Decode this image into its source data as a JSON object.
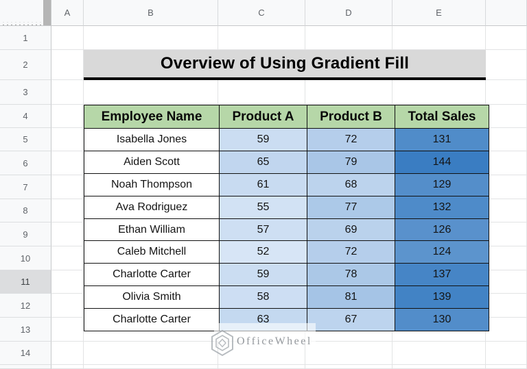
{
  "sheet": {
    "column_letters": [
      "A",
      "B",
      "C",
      "D",
      "E"
    ],
    "row_numbers": [
      "1",
      "2",
      "3",
      "4",
      "5",
      "6",
      "7",
      "8",
      "9",
      "10",
      "11",
      "12",
      "13",
      "14"
    ],
    "highlighted_row": "11"
  },
  "title": {
    "text": "Overview of Using Gradient Fill",
    "bg": "#d9d9d9"
  },
  "table": {
    "header_bg": "#b6d7a8",
    "headers": [
      "Employee Name",
      "Product A",
      "Product B",
      "Total Sales"
    ],
    "rows": [
      {
        "name": "Isabella Jones",
        "product_a": "59",
        "product_b": "72",
        "total": "131",
        "colors": [
          "#cbddf2",
          "#b5ceeb",
          "#508cc9"
        ]
      },
      {
        "name": "Aiden Scott",
        "product_a": "65",
        "product_b": "79",
        "total": "144",
        "colors": [
          "#c1d6ef",
          "#a9c6e7",
          "#3a7dc2"
        ]
      },
      {
        "name": "Noah Thompson",
        "product_a": "61",
        "product_b": "68",
        "total": "129",
        "colors": [
          "#c8dbf1",
          "#bcd3ed",
          "#548eca"
        ]
      },
      {
        "name": "Ava Rodriguez",
        "product_a": "55",
        "product_b": "77",
        "total": "132",
        "colors": [
          "#d2e2f4",
          "#acc9e8",
          "#4e8bc9"
        ]
      },
      {
        "name": "Ethan William",
        "product_a": "57",
        "product_b": "69",
        "total": "126",
        "colors": [
          "#cedff3",
          "#bad2ec",
          "#5991cc"
        ]
      },
      {
        "name": "Caleb Mitchell",
        "product_a": "52",
        "product_b": "72",
        "total": "124",
        "colors": [
          "#d7e5f6",
          "#b5ceeb",
          "#5c94cd"
        ]
      },
      {
        "name": "Charlotte Carter",
        "product_a": "59",
        "product_b": "78",
        "total": "137",
        "colors": [
          "#cbddf2",
          "#abc8e7",
          "#4685c6"
        ]
      },
      {
        "name": "Olivia Smith",
        "product_a": "58",
        "product_b": "81",
        "total": "139",
        "colors": [
          "#cddef3",
          "#a5c4e6",
          "#4283c5"
        ]
      },
      {
        "name": "Charlotte Carter",
        "product_a": "63",
        "product_b": "67",
        "total": "130",
        "colors": [
          "#c4d9f0",
          "#bdd4ee",
          "#528dca"
        ]
      }
    ]
  },
  "watermark": {
    "text": "OfficeWheel"
  },
  "colors": {
    "table_border": "#111111",
    "gridline": "#e2e3e4",
    "header_strip_bg": "#f8f9fa",
    "freeze_bar": "#b5b5b5",
    "row_highlight": "#dcdddf"
  }
}
